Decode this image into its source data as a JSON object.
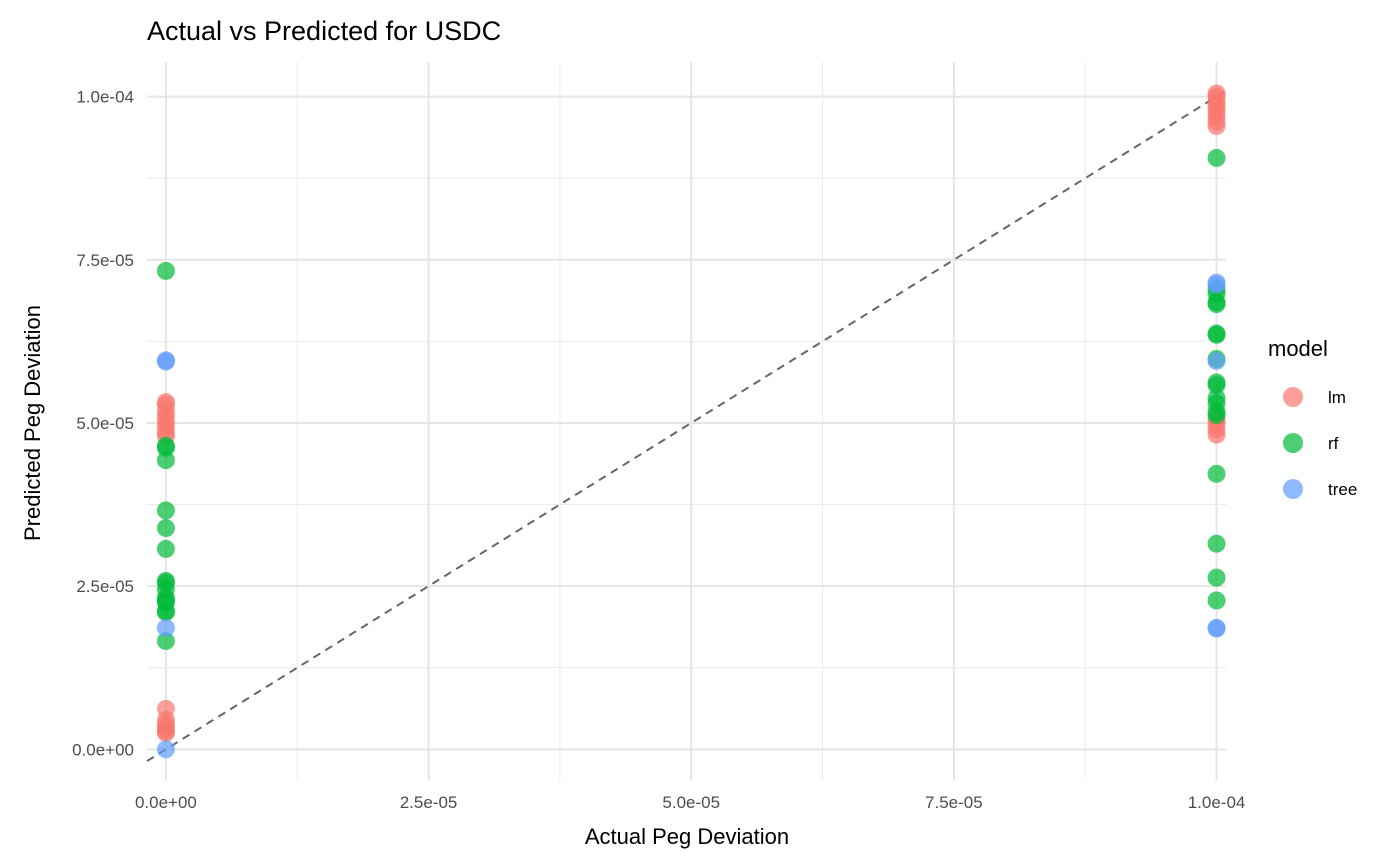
{
  "chart_data": {
    "type": "scatter",
    "title": "Actual vs Predicted for USDC",
    "xlabel": "Actual Peg Deviation",
    "ylabel": "Predicted Peg Deviation",
    "xlim": [
      -1.8e-06,
      0.0001009
    ],
    "ylim": [
      -4.7e-06,
      0.0001053
    ],
    "x_ticks": [
      0,
      2.5e-05,
      5e-05,
      7.5e-05,
      0.0001
    ],
    "x_tick_labels": [
      "0.0e+00",
      "2.5e-05",
      "5.0e-05",
      "7.5e-05",
      "1.0e-04"
    ],
    "y_ticks": [
      0,
      2.5e-05,
      5e-05,
      7.5e-05,
      0.0001
    ],
    "y_tick_labels": [
      "0.0e+00",
      "2.5e-05",
      "5.0e-05",
      "7.5e-05",
      "1.0e-04"
    ],
    "grid": true,
    "reference_line": "y = x (dashed)",
    "legend": {
      "title": "model",
      "position": "right"
    },
    "series": [
      {
        "name": "lm",
        "color": "#F8766D",
        "x": [
          0,
          0,
          0,
          0,
          0,
          0,
          0,
          0,
          0,
          0,
          0,
          0,
          0,
          0,
          0.0001,
          0.0001,
          0.0001,
          0.0001,
          0.0001,
          0.0001,
          0.0001,
          0.0001,
          0.0001,
          0.0001,
          0.0001,
          0.0001
        ],
        "y": [
          5.32e-05,
          5.28e-05,
          5.18e-05,
          5.1e-05,
          5.02e-05,
          4.95e-05,
          4.86e-05,
          4.8e-05,
          6.2e-06,
          4.5e-06,
          3.8e-06,
          3.3e-06,
          2.8e-06,
          2.5e-06,
          0.0001005,
          0.0001,
          9.92e-05,
          9.85e-05,
          9.78e-05,
          9.7e-05,
          9.62e-05,
          9.55e-05,
          5.05e-05,
          4.98e-05,
          4.9e-05,
          4.82e-05
        ]
      },
      {
        "name": "rf",
        "color": "#00BA38",
        "x": [
          0,
          0,
          0,
          0,
          0,
          0,
          0,
          0,
          0,
          0,
          0,
          0,
          0,
          0,
          0,
          0,
          0.0001,
          0.0001,
          0.0001,
          0.0001,
          0.0001,
          0.0001,
          0.0001,
          0.0001,
          0.0001,
          0.0001,
          0.0001,
          0.0001,
          0.0001,
          0.0001,
          0.0001,
          0.0001,
          0.0001,
          0.0001
        ],
        "y": [
          7.33e-05,
          4.65e-05,
          4.62e-05,
          4.43e-05,
          3.66e-05,
          3.39e-05,
          3.07e-05,
          2.58e-05,
          2.55e-05,
          2.45e-05,
          2.32e-05,
          2.28e-05,
          2.25e-05,
          2.12e-05,
          2.1e-05,
          1.66e-05,
          9.06e-05,
          7.05e-05,
          6.98e-05,
          6.85e-05,
          6.82e-05,
          6.37e-05,
          6.35e-05,
          5.98e-05,
          5.62e-05,
          5.58e-05,
          5.38e-05,
          5.3e-05,
          5.17e-05,
          5.12e-05,
          4.22e-05,
          3.15e-05,
          2.63e-05,
          2.28e-05
        ]
      },
      {
        "name": "tree",
        "color": "#619CFF",
        "x": [
          0,
          0,
          0,
          0,
          0.0001,
          0.0001,
          0.0001,
          0.0001,
          0.0001
        ],
        "y": [
          5.96e-05,
          5.94e-05,
          1.86e-05,
          0,
          7.15e-05,
          7.12e-05,
          5.95e-05,
          1.86e-05,
          1.85e-05
        ]
      }
    ]
  }
}
